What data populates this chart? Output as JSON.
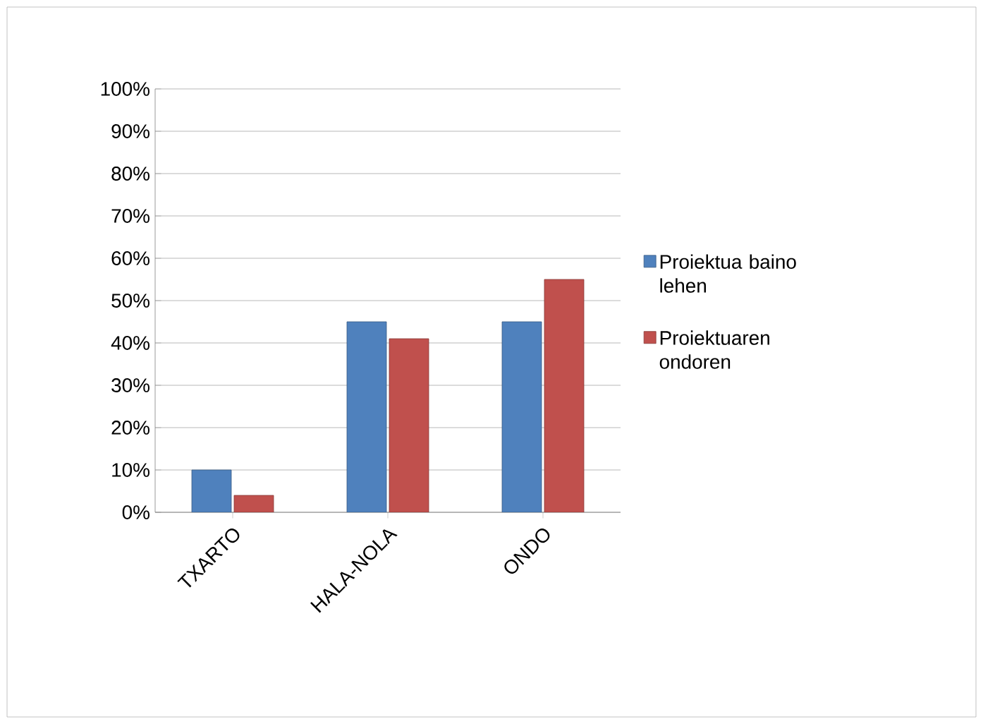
{
  "chart_data": {
    "type": "bar",
    "categories": [
      "TXARTO",
      "HALA-NOLA",
      "ONDO"
    ],
    "series": [
      {
        "name": "Proiektua baino lehen",
        "color": "#4f81bd",
        "values": [
          10,
          45,
          45
        ]
      },
      {
        "name": "Proiektuaren ondoren",
        "color": "#c0504d",
        "values": [
          4,
          41,
          55
        ]
      }
    ],
    "ylim": [
      0,
      100
    ],
    "yticks": [
      {
        "value": 0,
        "label": "0%"
      },
      {
        "value": 10,
        "label": "10%"
      },
      {
        "value": 20,
        "label": "20%"
      },
      {
        "value": 30,
        "label": "30%"
      },
      {
        "value": 40,
        "label": "40%"
      },
      {
        "value": 50,
        "label": "50%"
      },
      {
        "value": 60,
        "label": "60%"
      },
      {
        "value": 70,
        "label": "70%"
      },
      {
        "value": 80,
        "label": "80%"
      },
      {
        "value": 90,
        "label": "90%"
      },
      {
        "value": 100,
        "label": "100%"
      }
    ],
    "grid": "y",
    "legend": "right"
  }
}
